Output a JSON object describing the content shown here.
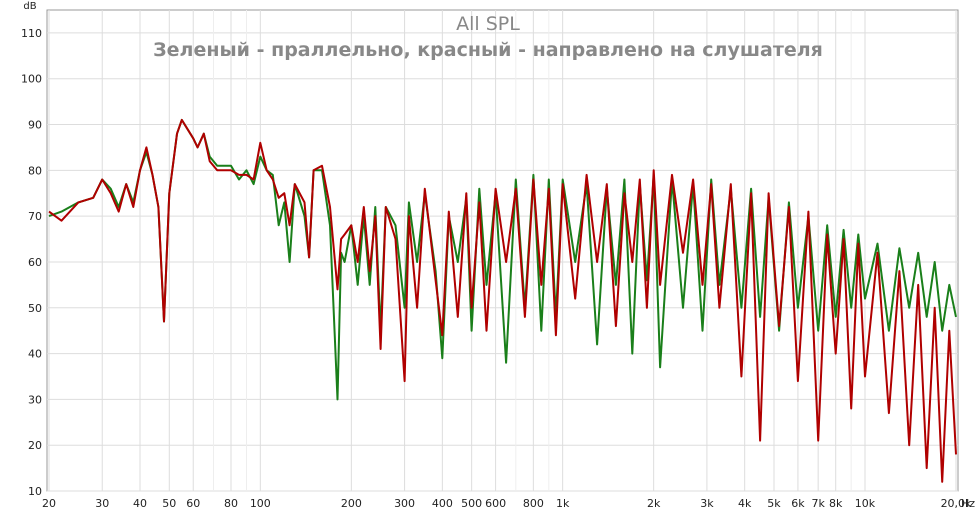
{
  "chart_data": {
    "type": "line",
    "title": "All SPL",
    "subtitle": "Зеленый - праллельно, красный - направлено на слушателя",
    "x_unit": "Hz",
    "y_unit": "dB",
    "xscale": "log",
    "grid": true,
    "xlim": [
      20,
      20000
    ],
    "ylim": [
      10,
      115
    ],
    "xticks": [
      20,
      30,
      40,
      50,
      60,
      80,
      100,
      200,
      300,
      400,
      500,
      600,
      800,
      {
        "value": 1000,
        "label": "1k"
      },
      {
        "value": 2000,
        "label": "2k"
      },
      {
        "value": 3000,
        "label": "3k"
      },
      {
        "value": 4000,
        "label": "4k"
      },
      {
        "value": 5000,
        "label": "5k"
      },
      {
        "value": 6000,
        "label": "6k"
      },
      {
        "value": 7000,
        "label": "7k"
      },
      {
        "value": 8000,
        "label": "8k"
      },
      {
        "value": 10000,
        "label": "10k"
      },
      {
        "value": 20000,
        "label": "20,0k"
      }
    ],
    "minor_xticks": [
      70,
      90,
      700,
      900,
      9000
    ],
    "yticks": [
      10,
      20,
      30,
      40,
      50,
      60,
      70,
      80,
      90,
      100,
      110
    ],
    "x": [
      20,
      22,
      25,
      28,
      30,
      32,
      34,
      36,
      38,
      40,
      42,
      44,
      46,
      48,
      50,
      53,
      55,
      60,
      62,
      65,
      68,
      72,
      80,
      85,
      90,
      95,
      100,
      105,
      110,
      115,
      120,
      125,
      130,
      140,
      145,
      150,
      160,
      170,
      180,
      185,
      190,
      200,
      210,
      220,
      230,
      240,
      250,
      260,
      280,
      300,
      310,
      330,
      350,
      380,
      400,
      420,
      450,
      480,
      500,
      530,
      560,
      600,
      650,
      700,
      750,
      800,
      850,
      900,
      950,
      1000,
      1100,
      1200,
      1300,
      1400,
      1500,
      1600,
      1700,
      1800,
      1900,
      2000,
      2100,
      2300,
      2500,
      2700,
      2900,
      3100,
      3300,
      3600,
      3900,
      4200,
      4500,
      4800,
      5200,
      5600,
      6000,
      6500,
      7000,
      7500,
      8000,
      8500,
      9000,
      9500,
      10000,
      11000,
      12000,
      13000,
      14000,
      15000,
      16000,
      17000,
      18000,
      19000,
      20000
    ],
    "series": [
      {
        "color": "#1a7f1a",
        "values": [
          70,
          71,
          73,
          74,
          78,
          76,
          72,
          77,
          73,
          80,
          84,
          79,
          72,
          47,
          75,
          88,
          91,
          87,
          85,
          88,
          83,
          81,
          81,
          78,
          80,
          77,
          83,
          80,
          79,
          68,
          73,
          60,
          77,
          70,
          61,
          80,
          80,
          68,
          30,
          62,
          60,
          68,
          55,
          70,
          55,
          72,
          45,
          72,
          68,
          50,
          73,
          60,
          75,
          58,
          39,
          70,
          60,
          74,
          45,
          76,
          55,
          75,
          38,
          78,
          50,
          79,
          45,
          78,
          48,
          78,
          60,
          77,
          42,
          76,
          55,
          78,
          40,
          77,
          56,
          79,
          37,
          78,
          50,
          77,
          45,
          78,
          55,
          76,
          50,
          76,
          48,
          74,
          45,
          73,
          50,
          70,
          45,
          68,
          48,
          67,
          50,
          66,
          52,
          64,
          45,
          63,
          50,
          62,
          48,
          60,
          45,
          55,
          48
        ]
      },
      {
        "color": "#b00000",
        "values": [
          71,
          69,
          73,
          74,
          78,
          75,
          71,
          77,
          72,
          80,
          85,
          79,
          72,
          47,
          75,
          88,
          91,
          87,
          85,
          88,
          82,
          80,
          80,
          79,
          79,
          78,
          86,
          80,
          78,
          74,
          75,
          68,
          77,
          73,
          61,
          80,
          81,
          72,
          54,
          65,
          66,
          68,
          60,
          72,
          58,
          70,
          41,
          72,
          65,
          34,
          70,
          50,
          76,
          56,
          44,
          71,
          48,
          75,
          50,
          73,
          45,
          76,
          60,
          76,
          48,
          78,
          55,
          76,
          44,
          77,
          52,
          79,
          60,
          77,
          46,
          75,
          60,
          78,
          50,
          80,
          55,
          79,
          62,
          78,
          55,
          77,
          50,
          77,
          35,
          75,
          21,
          75,
          46,
          72,
          34,
          71,
          21,
          66,
          40,
          65,
          28,
          64,
          35,
          62,
          27,
          58,
          20,
          55,
          15,
          50,
          12,
          45,
          18
        ]
      }
    ]
  }
}
